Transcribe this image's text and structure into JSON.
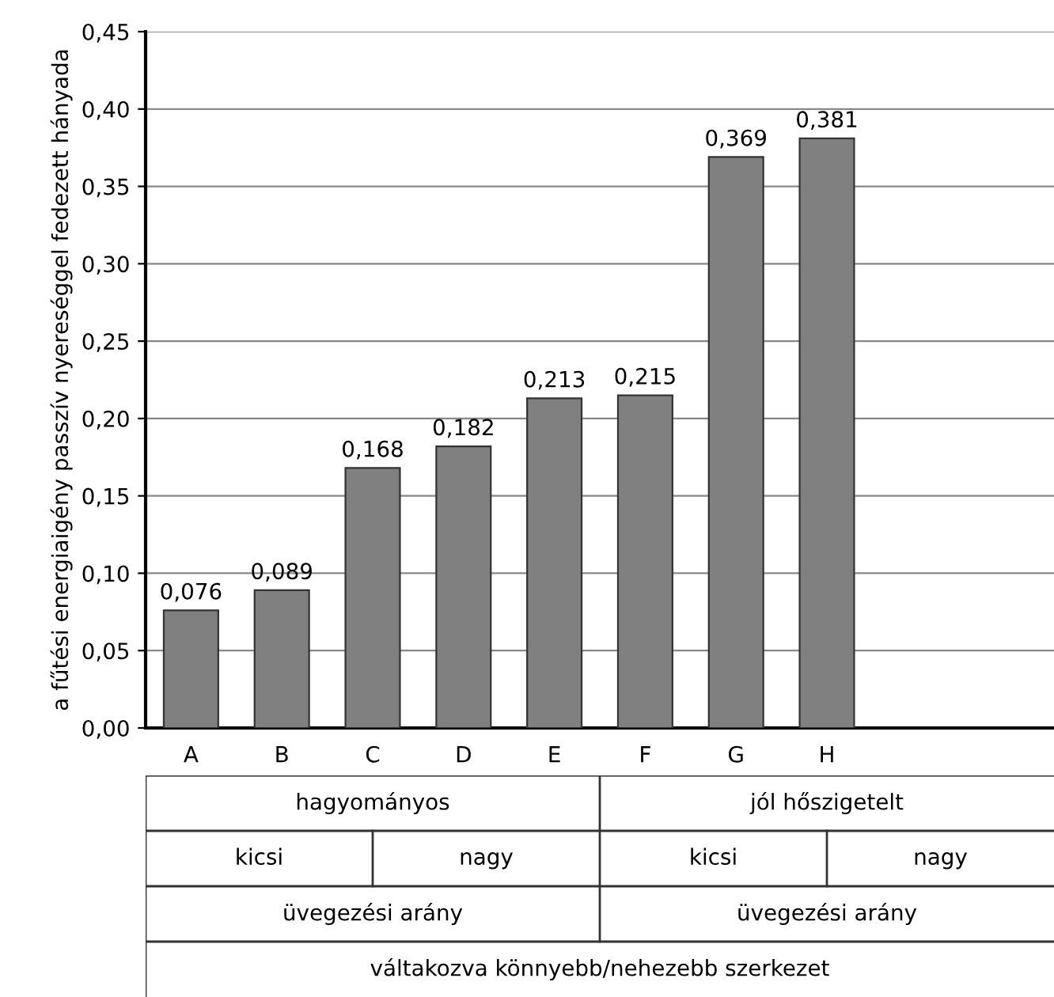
{
  "chart_data": {
    "type": "bar",
    "ylabel": "a fűtési energiaigény passzív nyereséggel fedezett hányada",
    "categories": [
      "A",
      "B",
      "C",
      "D",
      "E",
      "F",
      "G",
      "H"
    ],
    "values": [
      0.076,
      0.089,
      0.168,
      0.182,
      0.213,
      0.215,
      0.369,
      0.381
    ],
    "value_labels": [
      "0,076",
      "0,089",
      "0,168",
      "0,182",
      "0,213",
      "0,215",
      "0,369",
      "0,381"
    ],
    "color": "#808080",
    "ylim": [
      0,
      0.45
    ],
    "yticks": [
      {
        "value": 0,
        "label": "0,00"
      },
      {
        "value": 0.05,
        "label": "0,05"
      },
      {
        "value": 0.1,
        "label": "0,10"
      },
      {
        "value": 0.15,
        "label": "0,15"
      },
      {
        "value": 0.2,
        "label": "0,20"
      },
      {
        "value": 0.25,
        "label": "0,25"
      },
      {
        "value": 0.3,
        "label": "0,30"
      },
      {
        "value": 0.35,
        "label": "0,35"
      },
      {
        "value": 0.4,
        "label": "0,40"
      },
      {
        "value": 0.45,
        "label": "0,45"
      }
    ],
    "grid": "y",
    "annotations": [
      "hagyományos",
      "jól hőszigetelt",
      "kicsi",
      "nagy",
      "kicsi",
      "nagy",
      "üvegezési arány",
      "üvegezési arány",
      "váltakozva könnyebb/nehezebb szerkezet"
    ]
  }
}
